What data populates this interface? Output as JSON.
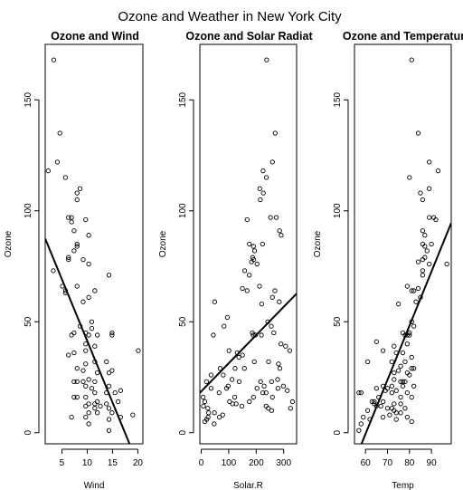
{
  "chart_data": {
    "title": "Ozone and Weather in New York City",
    "panels": [
      {
        "type": "scatter",
        "title": "Ozone and Wind",
        "xlabel": "Wind",
        "ylabel": "Ozone",
        "xlim": [
          1.7,
          21.0
        ],
        "ylim": [
          -5,
          175
        ],
        "xticks": [
          5,
          10,
          15,
          20
        ],
        "yticks": [
          0,
          50,
          100,
          150
        ],
        "regression": {
          "intercept": 96.9,
          "slope": -5.55
        },
        "points": [
          [
            3.4,
            168
          ],
          [
            4.6,
            135
          ],
          [
            4.1,
            122
          ],
          [
            2.3,
            118
          ],
          [
            5.7,
            115
          ],
          [
            8.6,
            110
          ],
          [
            8.0,
            108
          ],
          [
            8.0,
            105
          ],
          [
            9.7,
            96
          ],
          [
            6.3,
            97
          ],
          [
            6.9,
            97
          ],
          [
            6.9,
            95
          ],
          [
            7.4,
            91
          ],
          [
            10.3,
            89
          ],
          [
            8.0,
            85
          ],
          [
            8.0,
            84
          ],
          [
            7.4,
            82
          ],
          [
            6.3,
            79
          ],
          [
            6.3,
            78
          ],
          [
            9.2,
            78
          ],
          [
            10.3,
            76
          ],
          [
            3.3,
            73
          ],
          [
            14.3,
            71
          ],
          [
            8.0,
            66
          ],
          [
            5.1,
            66
          ],
          [
            5.7,
            64
          ],
          [
            5.7,
            63
          ],
          [
            11.5,
            64
          ],
          [
            10.3,
            61
          ],
          [
            9.2,
            59
          ],
          [
            10.9,
            50
          ],
          [
            8.6,
            48
          ],
          [
            10.9,
            47
          ],
          [
            7.4,
            45
          ],
          [
            9.7,
            45
          ],
          [
            14.9,
            45
          ],
          [
            12.0,
            44
          ],
          [
            14.9,
            44
          ],
          [
            10.3,
            44
          ],
          [
            6.9,
            44
          ],
          [
            9.7,
            40
          ],
          [
            11.5,
            39
          ],
          [
            20.1,
            37
          ],
          [
            9.7,
            37
          ],
          [
            7.4,
            36
          ],
          [
            6.3,
            35
          ],
          [
            13.8,
            32
          ],
          [
            11.5,
            32
          ],
          [
            9.7,
            31
          ],
          [
            8.0,
            29
          ],
          [
            9.2,
            28
          ],
          [
            12.0,
            27
          ],
          [
            14.9,
            28
          ],
          [
            14.3,
            27
          ],
          [
            10.3,
            24
          ],
          [
            8.0,
            23
          ],
          [
            7.4,
            23
          ],
          [
            9.2,
            23
          ],
          [
            11.5,
            23
          ],
          [
            14.3,
            21
          ],
          [
            9.7,
            21
          ],
          [
            10.9,
            20
          ],
          [
            16.6,
            19
          ],
          [
            13.8,
            18
          ],
          [
            15.5,
            18
          ],
          [
            11.5,
            18
          ],
          [
            7.4,
            16
          ],
          [
            8.0,
            16
          ],
          [
            9.7,
            16
          ],
          [
            12.0,
            14
          ],
          [
            13.8,
            13
          ],
          [
            16.1,
            14
          ],
          [
            11.5,
            13
          ],
          [
            10.3,
            13
          ],
          [
            12.6,
            12
          ],
          [
            9.7,
            12
          ],
          [
            14.3,
            11
          ],
          [
            11.5,
            11
          ],
          [
            14.9,
            9
          ],
          [
            10.3,
            9
          ],
          [
            12.0,
            9
          ],
          [
            19.0,
            8
          ],
          [
            6.9,
            7
          ],
          [
            9.7,
            7
          ],
          [
            16.6,
            7
          ],
          [
            14.3,
            6
          ],
          [
            10.3,
            4
          ],
          [
            14.3,
            1
          ]
        ]
      },
      {
        "type": "scatter",
        "title": "Ozone and Solar Radiat",
        "xlabel": "Solar.R",
        "ylabel": "Ozone",
        "xlim": [
          -5,
          347
        ],
        "ylim": [
          -5,
          175
        ],
        "xticks": [
          0,
          100,
          200,
          300
        ],
        "yticks": [
          0,
          50,
          100,
          150
        ],
        "regression": {
          "intercept": 18.6,
          "slope": 0.127
        },
        "points": [
          [
            238,
            168
          ],
          [
            269,
            135
          ],
          [
            259,
            122
          ],
          [
            225,
            118
          ],
          [
            237,
            115
          ],
          [
            213,
            110
          ],
          [
            226,
            108
          ],
          [
            215,
            105
          ],
          [
            167,
            96
          ],
          [
            252,
            97
          ],
          [
            273,
            97
          ],
          [
            285,
            91
          ],
          [
            291,
            89
          ],
          [
            175,
            85
          ],
          [
            190,
            84
          ],
          [
            223,
            85
          ],
          [
            194,
            82
          ],
          [
            187,
            79
          ],
          [
            191,
            78
          ],
          [
            183,
            77
          ],
          [
            203,
            76
          ],
          [
            158,
            73
          ],
          [
            175,
            71
          ],
          [
            212,
            66
          ],
          [
            150,
            65
          ],
          [
            167,
            64
          ],
          [
            268,
            64
          ],
          [
            49,
            59
          ],
          [
            259,
            61
          ],
          [
            220,
            58
          ],
          [
            284,
            59
          ],
          [
            95,
            52
          ],
          [
            242,
            50
          ],
          [
            255,
            48
          ],
          [
            83,
            48
          ],
          [
            44,
            44
          ],
          [
            186,
            45
          ],
          [
            264,
            45
          ],
          [
            189,
            44
          ],
          [
            197,
            44
          ],
          [
            219,
            44
          ],
          [
            290,
            40
          ],
          [
            307,
            39
          ],
          [
            322,
            37
          ],
          [
            101,
            37
          ],
          [
            131,
            36
          ],
          [
            137,
            34
          ],
          [
            150,
            35
          ],
          [
            193,
            32
          ],
          [
            245,
            32
          ],
          [
            281,
            31
          ],
          [
            286,
            29
          ],
          [
            123,
            29
          ],
          [
            69,
            29
          ],
          [
            157,
            29
          ],
          [
            36,
            26
          ],
          [
            80,
            26
          ],
          [
            112,
            24
          ],
          [
            278,
            24
          ],
          [
            19,
            23
          ],
          [
            138,
            23
          ],
          [
            216,
            23
          ],
          [
            256,
            23
          ],
          [
            299,
            21
          ],
          [
            98,
            21
          ],
          [
            229,
            21
          ],
          [
            36,
            20
          ],
          [
            92,
            20
          ],
          [
            203,
            20
          ],
          [
            279,
            20
          ],
          [
            313,
            19
          ],
          [
            224,
            18
          ],
          [
            65,
            18
          ],
          [
            236,
            18
          ],
          [
            7,
            16
          ],
          [
            122,
            16
          ],
          [
            190,
            16
          ],
          [
            259,
            16
          ],
          [
            332,
            14
          ],
          [
            13,
            14
          ],
          [
            103,
            14
          ],
          [
            175,
            14
          ],
          [
            127,
            13
          ],
          [
            114,
            13
          ],
          [
            8,
            12
          ],
          [
            236,
            12
          ],
          [
            148,
            12
          ],
          [
            244,
            11
          ],
          [
            24,
            11
          ],
          [
            325,
            11
          ],
          [
            256,
            10
          ],
          [
            48,
            9
          ],
          [
            27,
            9
          ],
          [
            78,
            8
          ],
          [
            66,
            7
          ],
          [
            25,
            7
          ],
          [
            20,
            6
          ],
          [
            13,
            5
          ],
          [
            47,
            4
          ]
        ]
      },
      {
        "type": "scatter",
        "title": "Ozone and Temperatur",
        "xlabel": "Temp",
        "ylabel": "Ozone",
        "xlim": [
          55,
          99
        ],
        "ylim": [
          -5,
          175
        ],
        "xticks": [
          60,
          70,
          80,
          90
        ],
        "yticks": [
          0,
          50,
          100,
          150
        ],
        "regression": {
          "intercept": -147.0,
          "slope": 2.44
        },
        "points": [
          [
            81,
            168
          ],
          [
            84,
            135
          ],
          [
            89,
            122
          ],
          [
            93,
            118
          ],
          [
            80,
            115
          ],
          [
            89,
            110
          ],
          [
            85,
            108
          ],
          [
            86,
            105
          ],
          [
            92,
            96
          ],
          [
            91,
            97
          ],
          [
            89,
            97
          ],
          [
            86,
            91
          ],
          [
            87,
            89
          ],
          [
            90,
            85
          ],
          [
            87,
            84
          ],
          [
            86,
            85
          ],
          [
            88,
            82
          ],
          [
            87,
            79
          ],
          [
            86,
            78
          ],
          [
            84,
            77
          ],
          [
            89,
            76
          ],
          [
            97,
            76
          ],
          [
            86,
            73
          ],
          [
            86,
            71
          ],
          [
            79,
            66
          ],
          [
            82,
            64
          ],
          [
            84,
            65
          ],
          [
            83,
            59
          ],
          [
            81,
            64
          ],
          [
            85,
            61
          ],
          [
            75,
            58
          ],
          [
            82,
            48
          ],
          [
            81,
            50
          ],
          [
            77,
            45
          ],
          [
            80,
            44
          ],
          [
            80,
            45
          ],
          [
            78,
            44
          ],
          [
            79,
            44
          ],
          [
            79,
            40
          ],
          [
            73,
            39
          ],
          [
            68,
            37
          ],
          [
            74,
            36
          ],
          [
            77,
            36
          ],
          [
            65,
            41
          ],
          [
            81,
            34
          ],
          [
            72,
            32
          ],
          [
            78,
            32
          ],
          [
            61,
            32
          ],
          [
            76,
            30
          ],
          [
            82,
            29
          ],
          [
            81,
            29
          ],
          [
            75,
            28
          ],
          [
            79,
            27
          ],
          [
            73,
            27
          ],
          [
            80,
            26
          ],
          [
            73,
            24
          ],
          [
            76,
            23
          ],
          [
            77,
            23
          ],
          [
            78,
            23
          ],
          [
            68,
            21
          ],
          [
            72,
            21
          ],
          [
            82,
            21
          ],
          [
            77,
            21
          ],
          [
            65,
            20
          ],
          [
            70,
            20
          ],
          [
            69,
            19
          ],
          [
            74,
            19
          ],
          [
            72,
            18
          ],
          [
            57,
            18
          ],
          [
            79,
            18
          ],
          [
            58,
            18
          ],
          [
            66,
            16
          ],
          [
            76,
            16
          ],
          [
            81,
            16
          ],
          [
            63,
            14
          ],
          [
            64,
            14
          ],
          [
            68,
            14
          ],
          [
            73,
            13
          ],
          [
            76,
            13
          ],
          [
            64,
            13
          ],
          [
            65,
            12
          ],
          [
            67,
            12
          ],
          [
            78,
            11
          ],
          [
            72,
            11
          ],
          [
            70,
            11
          ],
          [
            61,
            10
          ],
          [
            73,
            10
          ],
          [
            74,
            9
          ],
          [
            76,
            9
          ],
          [
            71,
            8
          ],
          [
            59,
            7
          ],
          [
            68,
            7
          ],
          [
            62,
            6
          ],
          [
            74,
            6
          ],
          [
            81,
            5
          ],
          [
            58,
            4
          ],
          [
            57,
            1
          ],
          [
            79,
            7
          ]
        ]
      }
    ]
  }
}
